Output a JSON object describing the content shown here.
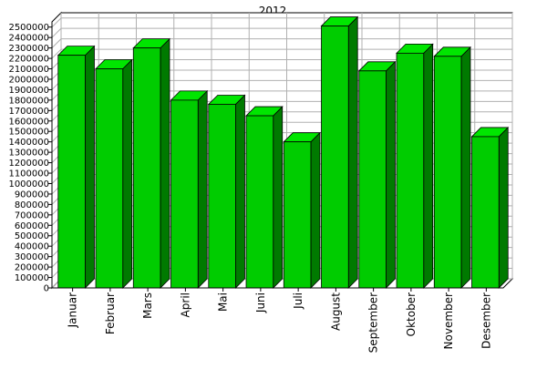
{
  "chart_data": {
    "type": "bar",
    "title": "2012",
    "xlabel": "",
    "ylabel": "",
    "categories": [
      "Januar",
      "Februar",
      "Mars",
      "April",
      "Mai",
      "Juni",
      "Juli",
      "August",
      "September",
      "Oktober",
      "November",
      "Desember"
    ],
    "values": [
      2230000,
      2100000,
      2300000,
      1800000,
      1760000,
      1650000,
      1400000,
      2510000,
      2080000,
      2250000,
      2220000,
      1450000
    ],
    "ylim": [
      0,
      2500000
    ],
    "ytick_step": 100000,
    "grid": true,
    "legend": "none",
    "colors": {
      "bar_front": "#00cc00",
      "bar_side": "#007a00",
      "bar_top": "#00e600",
      "grid": "#b0b0b0",
      "floor": "#ffffff",
      "wall": "#ffffff"
    }
  }
}
